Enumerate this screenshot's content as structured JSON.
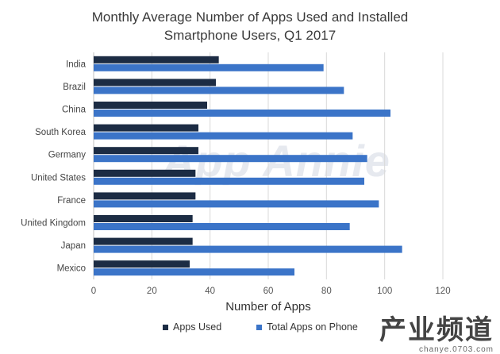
{
  "chart_data": {
    "type": "bar",
    "orientation": "horizontal",
    "title_lines": [
      "Monthly Average Number of Apps Used and Installed",
      "Smartphone Users, Q1 2017"
    ],
    "xlabel": "Number of Apps",
    "ylabel": "",
    "xlim": [
      0,
      120
    ],
    "xticks": [
      0,
      20,
      40,
      60,
      80,
      100,
      120
    ],
    "grid": "vertical",
    "legend_position": "bottom",
    "categories": [
      "India",
      "Brazil",
      "China",
      "South Korea",
      "Germany",
      "United States",
      "France",
      "United Kingdom",
      "Japan",
      "Mexico"
    ],
    "series": [
      {
        "name": "Apps Used",
        "color": "#1c2c44",
        "values": [
          43,
          42,
          39,
          36,
          36,
          35,
          35,
          34,
          34,
          33
        ]
      },
      {
        "name": "Total Apps on Phone",
        "color": "#3b74c8",
        "values": [
          79,
          86,
          102,
          89,
          94,
          93,
          98,
          88,
          106,
          69
        ]
      }
    ]
  },
  "watermarks": {
    "center": "App Annie",
    "site_cn": "产业频道",
    "site_url": "chanye.0703.com"
  }
}
